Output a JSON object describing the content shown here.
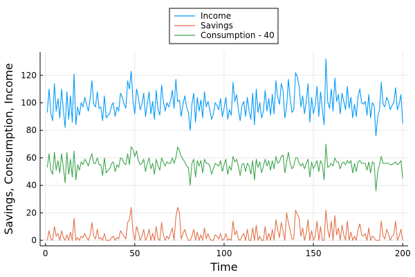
{
  "chart_data": {
    "type": "line",
    "title": "",
    "xlabel": "Time",
    "ylabel": "Savings, Consumption, Income",
    "xlim": [
      -3,
      203
    ],
    "ylim": [
      -4,
      137
    ],
    "xticks": [
      0,
      50,
      100,
      150,
      200
    ],
    "yticks": [
      0,
      20,
      40,
      60,
      80,
      100,
      120
    ],
    "grid": true,
    "legend_position": "top-center",
    "x": [
      1,
      2,
      3,
      4,
      5,
      6,
      7,
      8,
      9,
      10,
      11,
      12,
      13,
      14,
      15,
      16,
      17,
      18,
      19,
      20,
      21,
      22,
      23,
      24,
      25,
      26,
      27,
      28,
      29,
      30,
      31,
      32,
      33,
      34,
      35,
      36,
      37,
      38,
      39,
      40,
      41,
      42,
      43,
      44,
      45,
      46,
      47,
      48,
      49,
      50,
      51,
      52,
      53,
      54,
      55,
      56,
      57,
      58,
      59,
      60,
      61,
      62,
      63,
      64,
      65,
      66,
      67,
      68,
      69,
      70,
      71,
      72,
      73,
      74,
      75,
      76,
      77,
      78,
      79,
      80,
      81,
      82,
      83,
      84,
      85,
      86,
      87,
      88,
      89,
      90,
      91,
      92,
      93,
      94,
      95,
      96,
      97,
      98,
      99,
      100,
      101,
      102,
      103,
      104,
      105,
      106,
      107,
      108,
      109,
      110,
      111,
      112,
      113,
      114,
      115,
      116,
      117,
      118,
      119,
      120,
      121,
      122,
      123,
      124,
      125,
      126,
      127,
      128,
      129,
      130,
      131,
      132,
      133,
      134,
      135,
      136,
      137,
      138,
      139,
      140,
      141,
      142,
      143,
      144,
      145,
      146,
      147,
      148,
      149,
      150,
      151,
      152,
      153,
      154,
      155,
      156,
      157,
      158,
      159,
      160,
      161,
      162,
      163,
      164,
      165,
      166,
      167,
      168,
      169,
      170,
      171,
      172,
      173,
      174,
      175,
      176,
      177,
      178,
      179,
      180,
      181,
      182,
      183,
      184,
      185,
      186,
      187,
      188,
      189,
      190,
      191,
      192,
      193,
      194,
      195,
      196,
      197,
      198,
      199,
      200
    ],
    "series": [
      {
        "name": "Income",
        "color": "#009af9",
        "values": [
          93,
          110,
          92,
          87,
          114,
          94,
          103,
          89,
          110,
          95,
          82,
          108,
          88,
          105,
          86,
          121,
          84,
          97,
          91,
          100,
          97,
          104,
          99,
          94,
          103,
          116,
          99,
          97,
          108,
          96,
          97,
          87,
          105,
          89,
          91,
          92,
          98,
          100,
          90,
          97,
          94,
          107,
          104,
          99,
          96,
          116,
          110,
          123,
          101,
          92,
          110,
          104,
          95,
          99,
          107,
          90,
          99,
          108,
          92,
          101,
          88,
          109,
          95,
          91,
          113,
          101,
          94,
          100,
          97,
          101,
          109,
          96,
          117,
          101,
          102,
          90,
          99,
          105,
          97,
          93,
          80,
          99,
          107,
          86,
          104,
          94,
          102,
          89,
          108,
          97,
          101,
          95,
          88,
          92,
          100,
          98,
          95,
          103,
          90,
          96,
          104,
          88,
          95,
          91,
          115,
          101,
          106,
          95,
          87,
          98,
          101,
          90,
          104,
          94,
          88,
          107,
          84,
          110,
          93,
          100,
          89,
          94,
          109,
          94,
          103,
          91,
          106,
          92,
          116,
          104,
          99,
          114,
          109,
          89,
          97,
          117,
          103,
          93,
          95,
          122,
          119,
          112,
          97,
          105,
          92,
          101,
          114,
          86,
          104,
          92,
          98,
          112,
          90,
          108,
          95,
          84,
          132,
          101,
          96,
          110,
          94,
          118,
          101,
          106,
          92,
          107,
          101,
          95,
          112,
          96,
          104,
          89,
          99,
          90,
          105,
          110,
          100,
          99,
          101,
          91,
          106,
          89,
          100,
          98,
          76,
          90,
          95,
          115,
          99,
          97,
          104,
          101,
          95,
          98,
          100,
          111,
          95,
          99,
          106,
          85
        ]
      },
      {
        "name": "Savings",
        "color": "#e26f46",
        "values": [
          0,
          7,
          1,
          0,
          10,
          3,
          5,
          0,
          7,
          2,
          0,
          4,
          0,
          6,
          0,
          16,
          0,
          2,
          0,
          3,
          2,
          5,
          2,
          0,
          4,
          13,
          3,
          1,
          8,
          1,
          2,
          0,
          5,
          0,
          0,
          0,
          2,
          3,
          0,
          2,
          1,
          7,
          5,
          3,
          1,
          13,
          15,
          24,
          6,
          0,
          10,
          6,
          0,
          3,
          8,
          0,
          3,
          8,
          0,
          5,
          0,
          10,
          1,
          0,
          13,
          4,
          0,
          3,
          1,
          5,
          9,
          0,
          17,
          24,
          20,
          1,
          5,
          8,
          3,
          0,
          0,
          3,
          8,
          0,
          6,
          0,
          4,
          0,
          9,
          1,
          5,
          1,
          0,
          0,
          4,
          3,
          1,
          5,
          0,
          1,
          5,
          0,
          1,
          0,
          14,
          4,
          7,
          1,
          0,
          3,
          5,
          0,
          8,
          0,
          0,
          9,
          0,
          11,
          0,
          3,
          0,
          0,
          10,
          0,
          5,
          0,
          8,
          0,
          15,
          8,
          2,
          13,
          7,
          0,
          20,
          13,
          7,
          1,
          1,
          22,
          19,
          16,
          3,
          9,
          0,
          5,
          15,
          0,
          7,
          0,
          3,
          14,
          0,
          10,
          0,
          0,
          22,
          8,
          2,
          14,
          0,
          18,
          4,
          9,
          0,
          11,
          4,
          0,
          14,
          0,
          6,
          0,
          3,
          0,
          8,
          12,
          4,
          3,
          5,
          0,
          9,
          0,
          3,
          2,
          0,
          0,
          0,
          14,
          3,
          1,
          8,
          5,
          0,
          3,
          4,
          14,
          0,
          3,
          8,
          0
        ]
      },
      {
        "name": "Consumption - 40",
        "color": "#3ea44e",
        "values": [
          53,
          63,
          51,
          48,
          64,
          51,
          58,
          49,
          63,
          53,
          42,
          64,
          48,
          59,
          46,
          65,
          44,
          55,
          51,
          57,
          55,
          59,
          57,
          54,
          59,
          63,
          56,
          56,
          60,
          55,
          55,
          47,
          60,
          49,
          51,
          52,
          56,
          57,
          50,
          55,
          53,
          60,
          59,
          56,
          55,
          63,
          55,
          68,
          66,
          61,
          65,
          58,
          55,
          56,
          59,
          50,
          56,
          60,
          52,
          56,
          48,
          59,
          54,
          51,
          60,
          57,
          54,
          57,
          56,
          56,
          60,
          56,
          60,
          68,
          65,
          61,
          59,
          57,
          54,
          53,
          40,
          56,
          59,
          46,
          58,
          54,
          58,
          49,
          59,
          56,
          56,
          54,
          48,
          52,
          56,
          55,
          54,
          58,
          50,
          55,
          59,
          48,
          54,
          51,
          61,
          57,
          59,
          54,
          47,
          55,
          56,
          50,
          56,
          54,
          48,
          58,
          44,
          59,
          53,
          57,
          49,
          54,
          59,
          54,
          58,
          51,
          58,
          52,
          61,
          56,
          57,
          61,
          62,
          49,
          57,
          64,
          56,
          52,
          54,
          60,
          60,
          56,
          54,
          56,
          52,
          56,
          59,
          46,
          57,
          52,
          55,
          58,
          50,
          58,
          55,
          44,
          70,
          53,
          54,
          56,
          54,
          60,
          57,
          57,
          52,
          56,
          57,
          55,
          58,
          56,
          58,
          49,
          56,
          50,
          57,
          58,
          56,
          56,
          56,
          51,
          57,
          49,
          57,
          56,
          36,
          50,
          55,
          61,
          56,
          56,
          56,
          56,
          55,
          55,
          56,
          57,
          55,
          56,
          58,
          45
        ]
      }
    ]
  }
}
